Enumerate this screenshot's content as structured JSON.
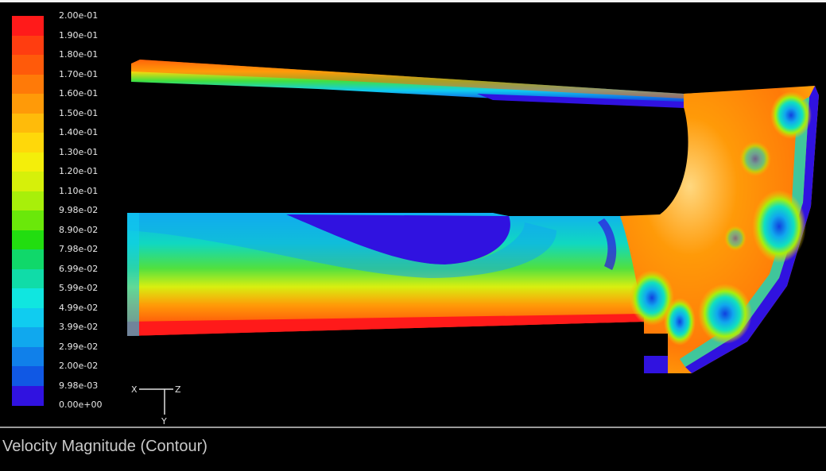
{
  "colorbar": {
    "labels": [
      "2.00e-01",
      "1.90e-01",
      "1.80e-01",
      "1.70e-01",
      "1.60e-01",
      "1.50e-01",
      "1.40e-01",
      "1.30e-01",
      "1.20e-01",
      "1.10e-01",
      "9.98e-02",
      "8.90e-02",
      "7.98e-02",
      "6.99e-02",
      "5.99e-02",
      "4.99e-02",
      "3.99e-02",
      "2.99e-02",
      "2.00e-02",
      "9.98e-03",
      "0.00e+00"
    ],
    "colors": [
      "#ff1a1a",
      "#ff3d10",
      "#ff5a0a",
      "#ff7a08",
      "#ff9a08",
      "#ffbb0a",
      "#ffd80a",
      "#f4ee0a",
      "#d6f00a",
      "#a8ef0a",
      "#6ae80a",
      "#22dd10",
      "#10d86a",
      "#10dca8",
      "#10e6e0",
      "#10ccf0",
      "#10a8ee",
      "#1080ea",
      "#1058e4",
      "#3012e0"
    ]
  },
  "triad": {
    "x": "X",
    "z": "Z",
    "y": "Y"
  },
  "caption": "Velocity Magnitude (Contour)"
}
